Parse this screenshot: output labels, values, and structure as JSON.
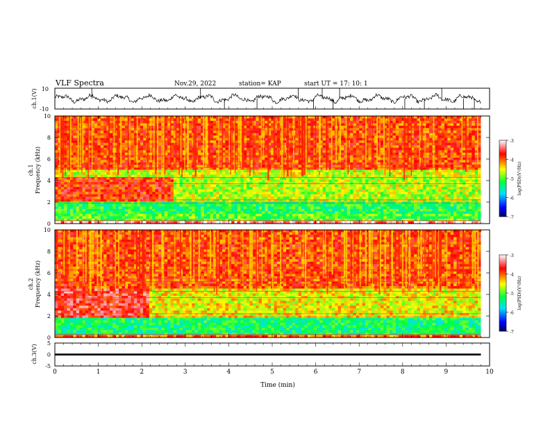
{
  "header": {
    "title": "VLF Spectra",
    "date": "Nov.29, 2022",
    "station": "station= KAP",
    "start_ut": "start  UT =   17: 10: 1"
  },
  "chart_data": [
    {
      "type": "line",
      "panel": "ch1-waveform",
      "ylabel": "ch.1(V)",
      "ylim": [
        -10,
        10
      ],
      "yticks": [
        "10",
        "-10"
      ],
      "xlim": [
        0,
        10
      ],
      "data_extent_min": 9.8,
      "trace_color": "#000000",
      "description_values": {
        "mean": 0.0,
        "typical_amplitude": 3,
        "spikes": [
          {
            "x": 0.85,
            "y": 10
          },
          {
            "x": 3.35,
            "y": 10
          },
          {
            "x": 3.9,
            "y": -10
          },
          {
            "x": 4.65,
            "y": -10
          },
          {
            "x": 5.6,
            "y": 10
          },
          {
            "x": 5.95,
            "y": -10
          },
          {
            "x": 6.15,
            "y": 10
          },
          {
            "x": 6.4,
            "y": -10
          },
          {
            "x": 6.55,
            "y": 10
          },
          {
            "x": 8.05,
            "y": -10
          },
          {
            "x": 8.5,
            "y": -10
          },
          {
            "x": 8.9,
            "y": 10
          },
          {
            "x": 9.4,
            "y": -10
          },
          {
            "x": 9.65,
            "y": -10
          }
        ]
      }
    },
    {
      "type": "heatmap",
      "panel": "ch1-spectrogram",
      "ylabel": "ch.1\nFrequency (kHz)",
      "ylim": [
        0,
        10
      ],
      "yticks": [
        "0",
        "2",
        "4",
        "6",
        "8",
        "10"
      ],
      "xlim": [
        0,
        10
      ],
      "data_extent_min": 9.8,
      "colorbar": {
        "label": "log(PSD)(V²/Hz)",
        "range": [
          -7,
          -3
        ],
        "ticks": [
          "-3",
          "-4",
          "-5",
          "-6",
          "-7"
        ],
        "colors": [
          "#000066",
          "#0000ff",
          "#00e0ff",
          "#00ff40",
          "#ffff00",
          "#ff0000",
          "#ffffff"
        ]
      },
      "bands": [
        {
          "f_min": 0.0,
          "f_max": 0.3,
          "t_min": 0,
          "t_max": 9.8,
          "level": -3.2
        },
        {
          "f_min": 0.3,
          "f_max": 1.0,
          "t_min": 0,
          "t_max": 9.8,
          "level": -5.0
        },
        {
          "f_min": 1.0,
          "f_max": 2.0,
          "t_min": 0,
          "t_max": 9.8,
          "level": -5.2
        },
        {
          "f_min": 2.0,
          "f_max": 4.3,
          "t_min": 0,
          "t_max": 2.7,
          "level": -3.8
        },
        {
          "f_min": 2.0,
          "f_max": 4.3,
          "t_min": 2.7,
          "t_max": 9.8,
          "level": -4.7
        },
        {
          "f_min": 4.3,
          "f_max": 5.0,
          "t_min": 0,
          "t_max": 9.8,
          "level": -4.6
        },
        {
          "f_min": 5.0,
          "f_max": 10.0,
          "t_min": 0,
          "t_max": 9.8,
          "level": -3.9
        }
      ]
    },
    {
      "type": "heatmap",
      "panel": "ch2-spectrogram",
      "ylabel": "ch.2\nFrequency (kHz)",
      "ylim": [
        0,
        10
      ],
      "yticks": [
        "0",
        "2",
        "4",
        "6",
        "8",
        "10"
      ],
      "xlim": [
        0,
        10
      ],
      "data_extent_min": 9.8,
      "colorbar": {
        "label": "log(PSD)(V²/Hz)",
        "range": [
          -7,
          -3
        ],
        "ticks": [
          "-3",
          "-4",
          "-5",
          "-6",
          "-7"
        ],
        "colors": [
          "#000066",
          "#0000ff",
          "#00e0ff",
          "#00ff40",
          "#ffff00",
          "#ff0000",
          "#ffffff"
        ]
      },
      "bands": [
        {
          "f_min": 0.0,
          "f_max": 0.3,
          "t_min": 0,
          "t_max": 9.8,
          "level": -4.0
        },
        {
          "f_min": 0.3,
          "f_max": 1.8,
          "t_min": 0,
          "t_max": 9.8,
          "level": -5.3
        },
        {
          "f_min": 1.8,
          "f_max": 4.5,
          "t_min": 0,
          "t_max": 2.2,
          "level": -3.6
        },
        {
          "f_min": 1.8,
          "f_max": 4.5,
          "t_min": 2.2,
          "t_max": 9.8,
          "level": -4.5
        },
        {
          "f_min": 4.5,
          "f_max": 10.0,
          "t_min": 0,
          "t_max": 9.8,
          "level": -3.9
        }
      ]
    },
    {
      "type": "line",
      "panel": "ch3-waveform",
      "ylabel": "ch.3(V)",
      "ylim": [
        -5,
        5
      ],
      "yticks": [
        "5",
        "0",
        "-5"
      ],
      "xlim": [
        0,
        10
      ],
      "xticks": [
        "0",
        "1",
        "2",
        "3",
        "4",
        "5",
        "6",
        "7",
        "8",
        "9",
        "10"
      ],
      "xlabel": "Time (min)",
      "data_extent_min": 9.8,
      "trace": {
        "value": 0.0,
        "thickness_V": 0.8
      }
    }
  ]
}
